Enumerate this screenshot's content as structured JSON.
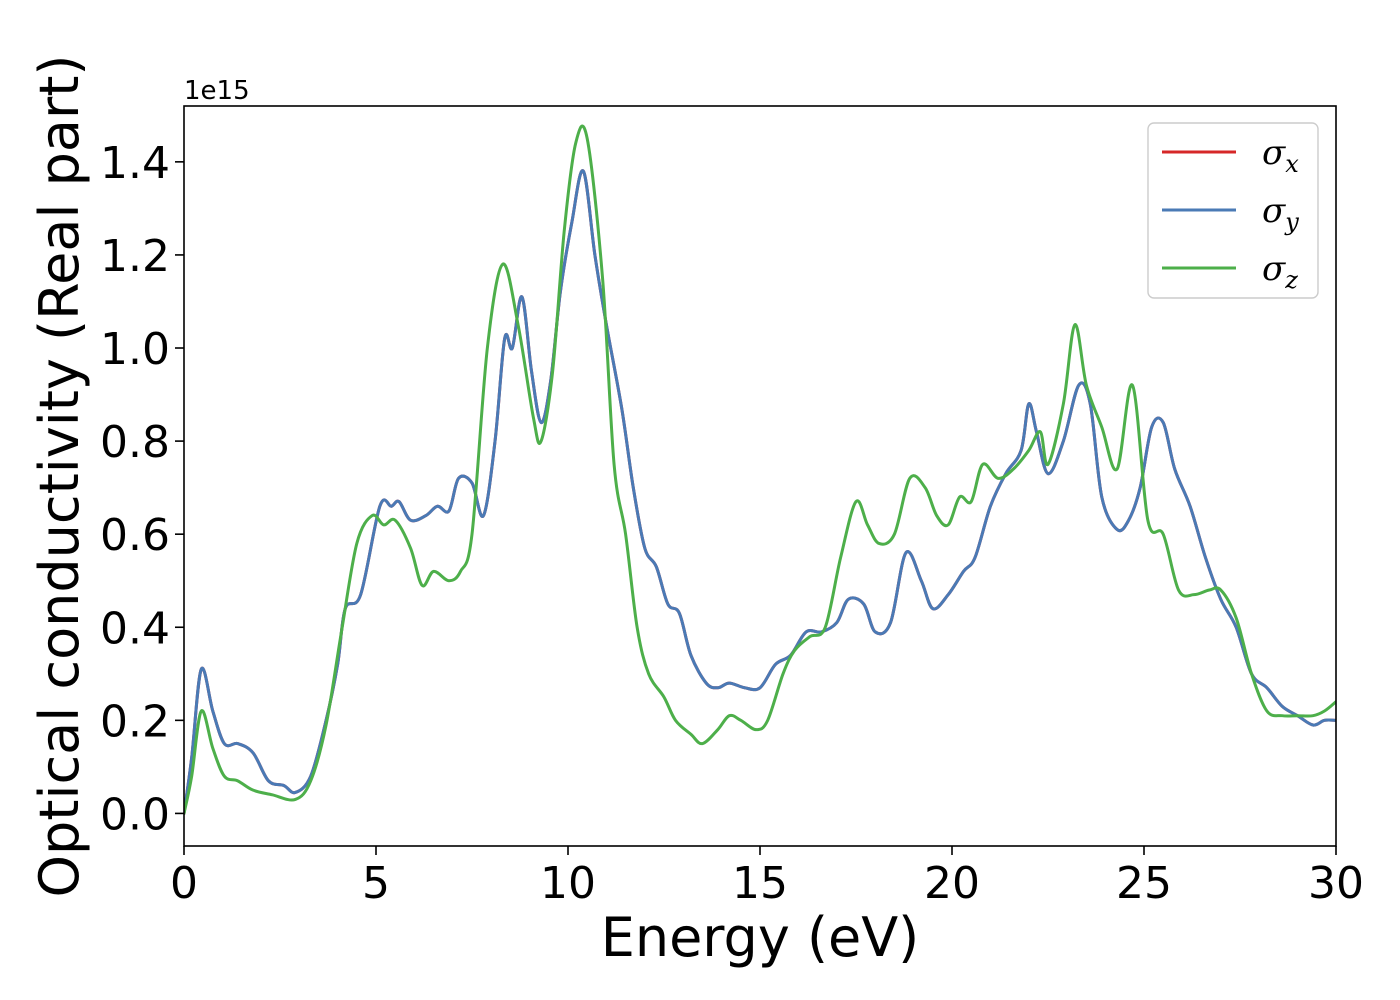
{
  "chart_data": {
    "type": "line",
    "xlabel": "Energy (eV)",
    "ylabel": "Optical conductivity (Real part)",
    "y_offset_label": "1e15",
    "xlim": [
      0,
      30
    ],
    "ylim": [
      -0.07,
      1.52
    ],
    "x_ticks": [
      0,
      5,
      10,
      15,
      20,
      25,
      30
    ],
    "x_tick_labels": [
      "0",
      "5",
      "10",
      "15",
      "20",
      "25",
      "30"
    ],
    "y_ticks": [
      0.0,
      0.2,
      0.4,
      0.6,
      0.8,
      1.0,
      1.2,
      1.4
    ],
    "y_tick_labels": [
      "0.0",
      "0.2",
      "0.4",
      "0.6",
      "0.8",
      "1.0",
      "1.2",
      "1.4"
    ],
    "grid": false,
    "legend_position": "top-right",
    "legend": [
      {
        "symbol": "σ",
        "sub": "x",
        "color": "#d62728"
      },
      {
        "symbol": "σ",
        "sub": "y",
        "color": "#4a7ab5"
      },
      {
        "symbol": "σ",
        "sub": "z",
        "color": "#4daf4a"
      }
    ],
    "series": [
      {
        "color": "#d62728",
        "points": [
          [
            0,
            0.0
          ],
          [
            0.2,
            0.12
          ],
          [
            0.45,
            0.31
          ],
          [
            0.75,
            0.22
          ],
          [
            1.05,
            0.15
          ],
          [
            1.4,
            0.15
          ],
          [
            1.8,
            0.13
          ],
          [
            2.2,
            0.07
          ],
          [
            2.6,
            0.06
          ],
          [
            2.9,
            0.045
          ],
          [
            3.3,
            0.08
          ],
          [
            3.7,
            0.2
          ],
          [
            4.0,
            0.32
          ],
          [
            4.2,
            0.44
          ],
          [
            4.6,
            0.47
          ],
          [
            5.1,
            0.66
          ],
          [
            5.4,
            0.66
          ],
          [
            5.6,
            0.67
          ],
          [
            5.9,
            0.63
          ],
          [
            6.3,
            0.64
          ],
          [
            6.6,
            0.66
          ],
          [
            6.9,
            0.65
          ],
          [
            7.15,
            0.72
          ],
          [
            7.5,
            0.71
          ],
          [
            7.8,
            0.64
          ],
          [
            8.1,
            0.8
          ],
          [
            8.35,
            1.02
          ],
          [
            8.55,
            1.0
          ],
          [
            8.8,
            1.11
          ],
          [
            9.05,
            0.95
          ],
          [
            9.3,
            0.84
          ],
          [
            9.55,
            0.93
          ],
          [
            9.8,
            1.12
          ],
          [
            10.1,
            1.27
          ],
          [
            10.4,
            1.38
          ],
          [
            10.7,
            1.2
          ],
          [
            11.0,
            1.05
          ],
          [
            11.4,
            0.87
          ],
          [
            11.7,
            0.7
          ],
          [
            12.0,
            0.57
          ],
          [
            12.3,
            0.53
          ],
          [
            12.6,
            0.45
          ],
          [
            12.9,
            0.43
          ],
          [
            13.2,
            0.34
          ],
          [
            13.6,
            0.28
          ],
          [
            13.9,
            0.27
          ],
          [
            14.2,
            0.28
          ],
          [
            14.6,
            0.27
          ],
          [
            15.0,
            0.27
          ],
          [
            15.4,
            0.32
          ],
          [
            15.8,
            0.34
          ],
          [
            16.2,
            0.39
          ],
          [
            16.6,
            0.39
          ],
          [
            17.0,
            0.41
          ],
          [
            17.3,
            0.46
          ],
          [
            17.7,
            0.45
          ],
          [
            18.0,
            0.39
          ],
          [
            18.4,
            0.41
          ],
          [
            18.8,
            0.56
          ],
          [
            19.2,
            0.5
          ],
          [
            19.5,
            0.44
          ],
          [
            19.9,
            0.47
          ],
          [
            20.3,
            0.52
          ],
          [
            20.6,
            0.55
          ],
          [
            21.0,
            0.66
          ],
          [
            21.4,
            0.73
          ],
          [
            21.8,
            0.78
          ],
          [
            22.0,
            0.88
          ],
          [
            22.2,
            0.82
          ],
          [
            22.5,
            0.73
          ],
          [
            22.9,
            0.8
          ],
          [
            23.3,
            0.92
          ],
          [
            23.6,
            0.88
          ],
          [
            23.9,
            0.68
          ],
          [
            24.3,
            0.61
          ],
          [
            24.6,
            0.63
          ],
          [
            24.9,
            0.7
          ],
          [
            25.2,
            0.83
          ],
          [
            25.5,
            0.84
          ],
          [
            25.8,
            0.74
          ],
          [
            26.2,
            0.66
          ],
          [
            26.6,
            0.55
          ],
          [
            27.0,
            0.46
          ],
          [
            27.4,
            0.4
          ],
          [
            27.8,
            0.3
          ],
          [
            28.2,
            0.27
          ],
          [
            28.6,
            0.23
          ],
          [
            29.0,
            0.21
          ],
          [
            29.4,
            0.19
          ],
          [
            29.7,
            0.2
          ],
          [
            30.0,
            0.2
          ]
        ]
      },
      {
        "color": "#4a7ab5",
        "points": [
          [
            0,
            0.0
          ],
          [
            0.2,
            0.12
          ],
          [
            0.45,
            0.31
          ],
          [
            0.75,
            0.22
          ],
          [
            1.05,
            0.15
          ],
          [
            1.4,
            0.15
          ],
          [
            1.8,
            0.13
          ],
          [
            2.2,
            0.07
          ],
          [
            2.6,
            0.06
          ],
          [
            2.9,
            0.045
          ],
          [
            3.3,
            0.08
          ],
          [
            3.7,
            0.2
          ],
          [
            4.0,
            0.32
          ],
          [
            4.2,
            0.44
          ],
          [
            4.6,
            0.47
          ],
          [
            5.1,
            0.66
          ],
          [
            5.4,
            0.66
          ],
          [
            5.6,
            0.67
          ],
          [
            5.9,
            0.63
          ],
          [
            6.3,
            0.64
          ],
          [
            6.6,
            0.66
          ],
          [
            6.9,
            0.65
          ],
          [
            7.15,
            0.72
          ],
          [
            7.5,
            0.71
          ],
          [
            7.8,
            0.64
          ],
          [
            8.1,
            0.8
          ],
          [
            8.35,
            1.02
          ],
          [
            8.55,
            1.0
          ],
          [
            8.8,
            1.11
          ],
          [
            9.05,
            0.95
          ],
          [
            9.3,
            0.84
          ],
          [
            9.55,
            0.93
          ],
          [
            9.8,
            1.12
          ],
          [
            10.1,
            1.27
          ],
          [
            10.4,
            1.38
          ],
          [
            10.7,
            1.2
          ],
          [
            11.0,
            1.05
          ],
          [
            11.4,
            0.87
          ],
          [
            11.7,
            0.7
          ],
          [
            12.0,
            0.57
          ],
          [
            12.3,
            0.53
          ],
          [
            12.6,
            0.45
          ],
          [
            12.9,
            0.43
          ],
          [
            13.2,
            0.34
          ],
          [
            13.6,
            0.28
          ],
          [
            13.9,
            0.27
          ],
          [
            14.2,
            0.28
          ],
          [
            14.6,
            0.27
          ],
          [
            15.0,
            0.27
          ],
          [
            15.4,
            0.32
          ],
          [
            15.8,
            0.34
          ],
          [
            16.2,
            0.39
          ],
          [
            16.6,
            0.39
          ],
          [
            17.0,
            0.41
          ],
          [
            17.3,
            0.46
          ],
          [
            17.7,
            0.45
          ],
          [
            18.0,
            0.39
          ],
          [
            18.4,
            0.41
          ],
          [
            18.8,
            0.56
          ],
          [
            19.2,
            0.5
          ],
          [
            19.5,
            0.44
          ],
          [
            19.9,
            0.47
          ],
          [
            20.3,
            0.52
          ],
          [
            20.6,
            0.55
          ],
          [
            21.0,
            0.66
          ],
          [
            21.4,
            0.73
          ],
          [
            21.8,
            0.78
          ],
          [
            22.0,
            0.88
          ],
          [
            22.2,
            0.82
          ],
          [
            22.5,
            0.73
          ],
          [
            22.9,
            0.8
          ],
          [
            23.3,
            0.92
          ],
          [
            23.6,
            0.88
          ],
          [
            23.9,
            0.68
          ],
          [
            24.3,
            0.61
          ],
          [
            24.6,
            0.63
          ],
          [
            24.9,
            0.7
          ],
          [
            25.2,
            0.83
          ],
          [
            25.5,
            0.84
          ],
          [
            25.8,
            0.74
          ],
          [
            26.2,
            0.66
          ],
          [
            26.6,
            0.55
          ],
          [
            27.0,
            0.46
          ],
          [
            27.4,
            0.4
          ],
          [
            27.8,
            0.3
          ],
          [
            28.2,
            0.27
          ],
          [
            28.6,
            0.23
          ],
          [
            29.0,
            0.21
          ],
          [
            29.4,
            0.19
          ],
          [
            29.7,
            0.2
          ],
          [
            30.0,
            0.2
          ]
        ]
      },
      {
        "color": "#4daf4a",
        "points": [
          [
            0,
            0.0
          ],
          [
            0.2,
            0.08
          ],
          [
            0.45,
            0.22
          ],
          [
            0.75,
            0.14
          ],
          [
            1.05,
            0.08
          ],
          [
            1.4,
            0.07
          ],
          [
            1.8,
            0.05
          ],
          [
            2.3,
            0.04
          ],
          [
            2.9,
            0.03
          ],
          [
            3.3,
            0.07
          ],
          [
            3.7,
            0.19
          ],
          [
            4.1,
            0.39
          ],
          [
            4.5,
            0.58
          ],
          [
            4.9,
            0.64
          ],
          [
            5.2,
            0.62
          ],
          [
            5.5,
            0.63
          ],
          [
            5.9,
            0.57
          ],
          [
            6.2,
            0.49
          ],
          [
            6.5,
            0.52
          ],
          [
            6.9,
            0.5
          ],
          [
            7.2,
            0.52
          ],
          [
            7.5,
            0.6
          ],
          [
            7.9,
            1.0
          ],
          [
            8.3,
            1.18
          ],
          [
            8.7,
            1.05
          ],
          [
            9.1,
            0.85
          ],
          [
            9.3,
            0.8
          ],
          [
            9.6,
            0.95
          ],
          [
            9.9,
            1.25
          ],
          [
            10.2,
            1.44
          ],
          [
            10.5,
            1.45
          ],
          [
            10.9,
            1.15
          ],
          [
            11.2,
            0.75
          ],
          [
            11.5,
            0.6
          ],
          [
            11.8,
            0.4
          ],
          [
            12.1,
            0.3
          ],
          [
            12.5,
            0.25
          ],
          [
            12.8,
            0.2
          ],
          [
            13.2,
            0.17
          ],
          [
            13.5,
            0.15
          ],
          [
            13.9,
            0.18
          ],
          [
            14.2,
            0.21
          ],
          [
            14.5,
            0.2
          ],
          [
            14.9,
            0.18
          ],
          [
            15.2,
            0.2
          ],
          [
            15.6,
            0.3
          ],
          [
            15.9,
            0.35
          ],
          [
            16.3,
            0.38
          ],
          [
            16.7,
            0.4
          ],
          [
            17.1,
            0.55
          ],
          [
            17.5,
            0.67
          ],
          [
            17.8,
            0.62
          ],
          [
            18.1,
            0.58
          ],
          [
            18.5,
            0.6
          ],
          [
            18.9,
            0.72
          ],
          [
            19.3,
            0.7
          ],
          [
            19.6,
            0.64
          ],
          [
            19.9,
            0.62
          ],
          [
            20.2,
            0.68
          ],
          [
            20.5,
            0.67
          ],
          [
            20.8,
            0.75
          ],
          [
            21.2,
            0.72
          ],
          [
            21.6,
            0.74
          ],
          [
            22.0,
            0.78
          ],
          [
            22.3,
            0.82
          ],
          [
            22.5,
            0.75
          ],
          [
            22.9,
            0.88
          ],
          [
            23.2,
            1.05
          ],
          [
            23.5,
            0.92
          ],
          [
            23.9,
            0.83
          ],
          [
            24.3,
            0.74
          ],
          [
            24.7,
            0.92
          ],
          [
            25.1,
            0.63
          ],
          [
            25.5,
            0.6
          ],
          [
            25.9,
            0.48
          ],
          [
            26.3,
            0.47
          ],
          [
            26.7,
            0.48
          ],
          [
            27.0,
            0.48
          ],
          [
            27.4,
            0.42
          ],
          [
            27.8,
            0.3
          ],
          [
            28.2,
            0.22
          ],
          [
            28.6,
            0.21
          ],
          [
            29.0,
            0.21
          ],
          [
            29.4,
            0.21
          ],
          [
            29.7,
            0.22
          ],
          [
            30.0,
            0.24
          ]
        ]
      }
    ]
  }
}
